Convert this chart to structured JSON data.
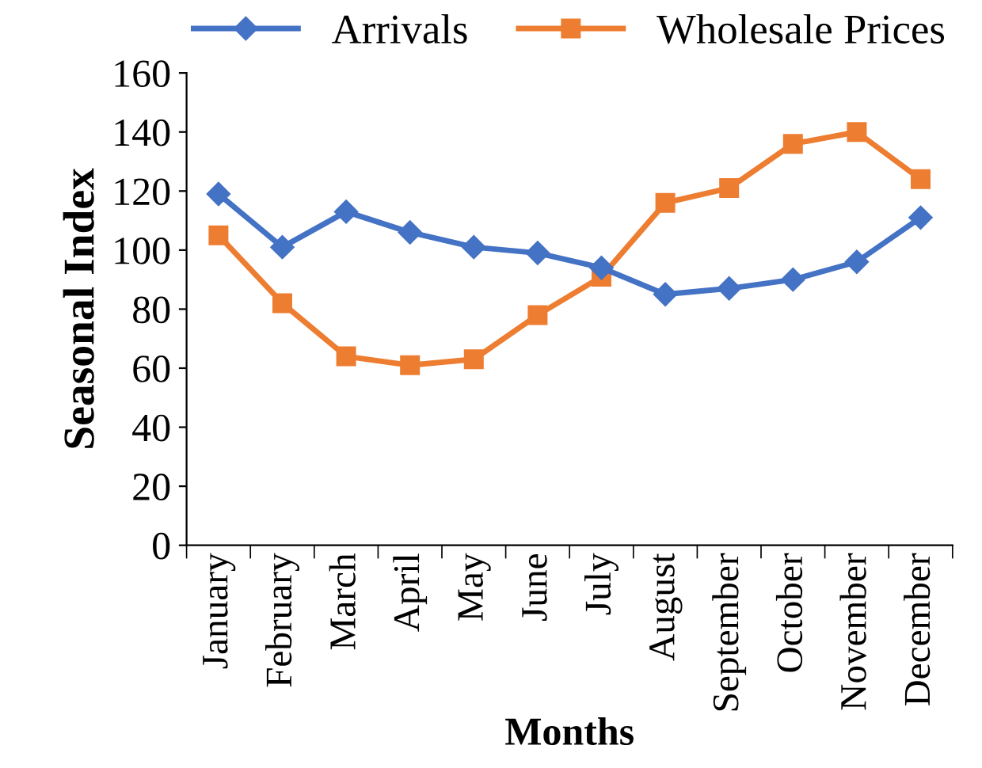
{
  "chart_data": {
    "type": "line",
    "xlabel": "Months",
    "ylabel": "Seasonal Index",
    "categories": [
      "January",
      "February",
      "March",
      "April",
      "May",
      "June",
      "July",
      "August",
      "September",
      "October",
      "November",
      "December"
    ],
    "series": [
      {
        "name": "Arrivals",
        "color": "#4472c4",
        "marker": "diamond",
        "values": [
          119,
          101,
          113,
          106,
          101,
          99,
          94,
          85,
          87,
          90,
          96,
          111
        ]
      },
      {
        "name": "Wholesale Prices",
        "color": "#ed7d31",
        "marker": "square",
        "values": [
          105,
          82,
          64,
          61,
          63,
          78,
          91,
          116,
          121,
          136,
          140,
          124
        ]
      }
    ],
    "ylim": [
      0,
      160
    ],
    "yticks": [
      0,
      20,
      40,
      60,
      80,
      100,
      120,
      140,
      160
    ],
    "grid": false,
    "legend": "top",
    "line_style": "solid"
  }
}
